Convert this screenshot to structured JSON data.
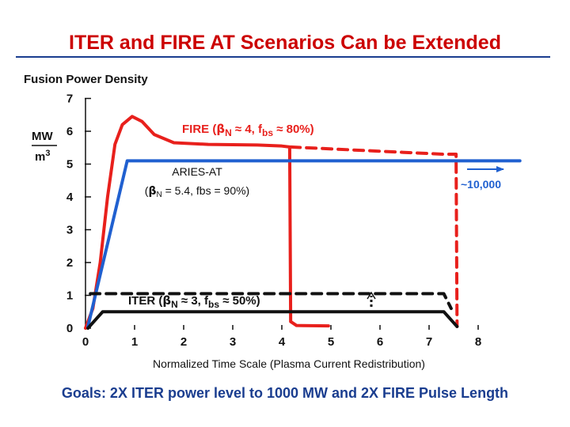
{
  "slide": {
    "title": "ITER and FIRE AT Scenarios Can be Extended",
    "footer": "Goals: 2X ITER power level to 1000 MW and 2X FIRE Pulse Length"
  },
  "chart_data": {
    "type": "line",
    "title": "Fusion Power Density",
    "xlabel": "Normalized Time Scale (Plasma Current Redistribution)",
    "ylabel": {
      "numerator": "MW",
      "denominator_base": "m",
      "denominator_exp": "3"
    },
    "xlim": [
      0,
      8
    ],
    "ylim": [
      0,
      7
    ],
    "xticks": [
      "0",
      "1",
      "2",
      "3",
      "4",
      "5",
      "6",
      "7",
      "8"
    ],
    "yticks": [
      "0",
      "1",
      "2",
      "3",
      "4",
      "5",
      "6",
      "7"
    ],
    "grid": false,
    "colors": {
      "fire": "#e8201c",
      "aries": "#2060d0",
      "iter": "#111111"
    },
    "series": [
      {
        "name": "FIRE",
        "style": "solid",
        "color": "#e8201c",
        "points": [
          [
            0,
            0
          ],
          [
            0.15,
            0.6
          ],
          [
            0.3,
            2
          ],
          [
            0.45,
            4
          ],
          [
            0.6,
            5.6
          ],
          [
            0.75,
            6.2
          ],
          [
            0.95,
            6.45
          ],
          [
            1.15,
            6.3
          ],
          [
            1.4,
            5.9
          ],
          [
            1.8,
            5.65
          ],
          [
            2.5,
            5.6
          ],
          [
            3.5,
            5.58
          ],
          [
            4.0,
            5.55
          ],
          [
            4.16,
            5.52
          ],
          [
            4.18,
            0.2
          ],
          [
            4.3,
            0.08
          ],
          [
            4.95,
            0.07
          ]
        ]
      },
      {
        "name": "FIRE extended",
        "style": "dashed",
        "color": "#e8201c",
        "points": [
          [
            4.18,
            5.52
          ],
          [
            7.3,
            5.3
          ],
          [
            7.55,
            5.3
          ],
          [
            7.57,
            0.05
          ]
        ]
      },
      {
        "name": "ARIES-AT",
        "style": "solid",
        "color": "#2060d0",
        "points": [
          [
            0.05,
            0.05
          ],
          [
            0.85,
            5.1
          ],
          [
            8.85,
            5.1
          ]
        ]
      },
      {
        "name": "ITER",
        "style": "solid",
        "color": "#111111",
        "points": [
          [
            0.05,
            0
          ],
          [
            0.35,
            0.5
          ],
          [
            7.3,
            0.5
          ],
          [
            7.57,
            0.05
          ]
        ]
      },
      {
        "name": "ITER extended",
        "style": "dashed",
        "color": "#111111",
        "points": [
          [
            0.1,
            1.05
          ],
          [
            7.3,
            1.05
          ],
          [
            7.45,
            0.6
          ]
        ]
      }
    ],
    "annotations": {
      "fire": {
        "main": "FIRE (",
        "beta": "β",
        "n_sub": "N",
        "approx": " ≈ 4, f",
        "bs_sub": "bs",
        "rest": " ≈ 80%)"
      },
      "aries": {
        "line1": "ARIES-AT",
        "line2_open": "(",
        "beta": "β",
        "n_sub": "N",
        "line2_rest": " = 5.4, fbs = 90%)"
      },
      "iter": {
        "main": "ITER (",
        "beta": "β",
        "n_sub": "N",
        "approx": " ≈ 3, f",
        "bs_sub": "bs",
        "rest": " ≈ 50%)"
      },
      "arrow_label": "~10,000"
    }
  }
}
